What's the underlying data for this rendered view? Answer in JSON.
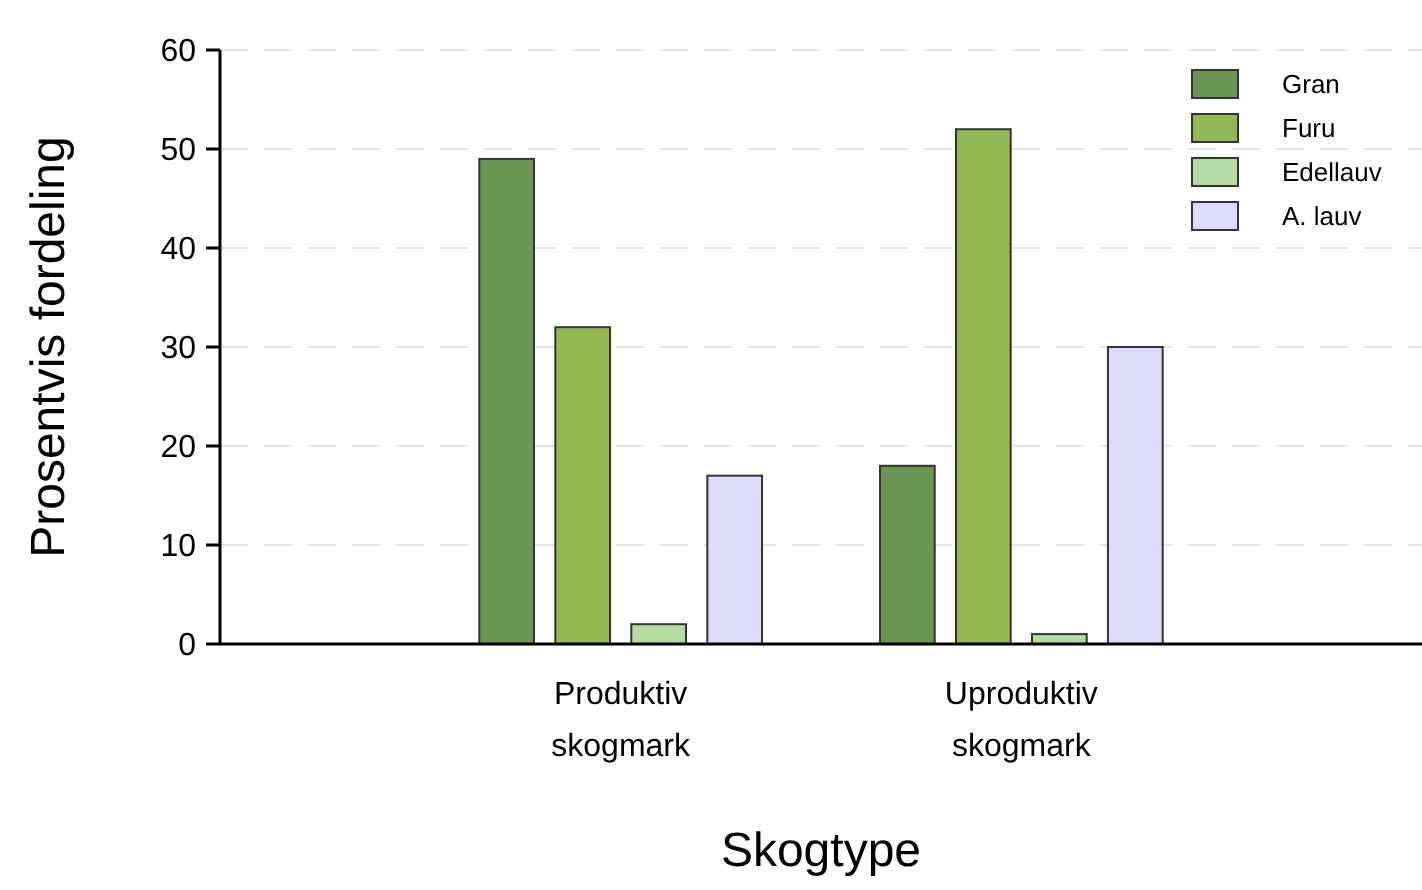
{
  "chart_data": {
    "type": "bar",
    "xlabel": "Skogtype",
    "ylabel": "Prosentvis fordeling",
    "categories": [
      "Produktiv skogmark",
      "Uproduktiv skogmark"
    ],
    "series": [
      {
        "name": "Gran",
        "color": "#6a9552",
        "values": [
          49,
          18
        ]
      },
      {
        "name": "Furu",
        "color": "#94b851",
        "values": [
          32,
          52
        ]
      },
      {
        "name": "Edellauv",
        "color": "#b3dca0",
        "values": [
          2,
          1
        ]
      },
      {
        "name": "A. lauv",
        "color": "#dcdcfa",
        "values": [
          17,
          30
        ]
      }
    ],
    "ylim": [
      0,
      60
    ],
    "yticks": [
      0,
      10,
      20,
      30,
      40,
      50,
      60
    ],
    "grid": "y",
    "legend": "top right"
  }
}
